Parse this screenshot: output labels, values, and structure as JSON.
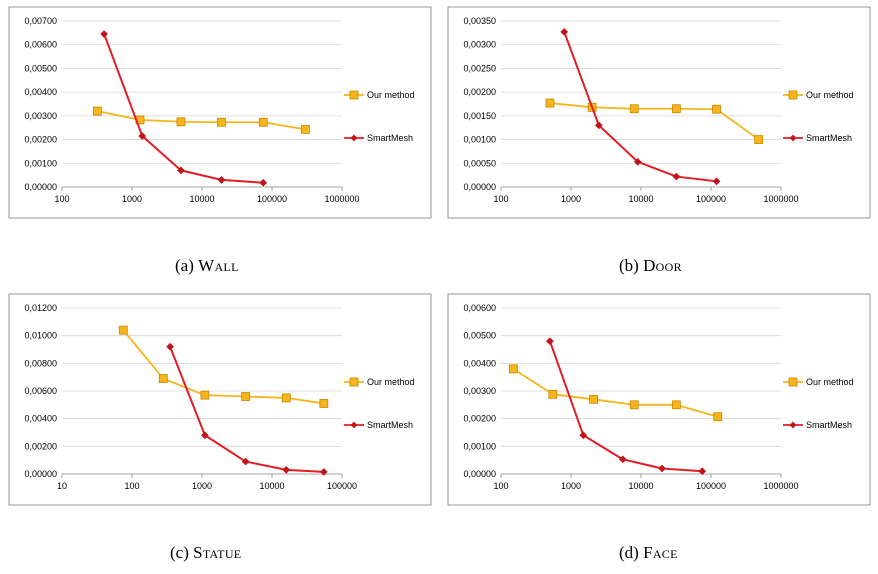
{
  "colors": {
    "our_method": "#f7b51d",
    "our_method_edge": "#c98700",
    "smartmesh": "#e21d24",
    "smartmesh_marker": "#c0141b",
    "frame": "#7f7f7f"
  },
  "chart_data": [
    {
      "id": "wall",
      "type": "line",
      "caption_prefix": "(a)",
      "caption_name": "Wall",
      "xscale": "log",
      "xlim": [
        100,
        1000000
      ],
      "ylim": [
        0,
        0.007
      ],
      "xticks": [
        100,
        1000,
        10000,
        100000,
        1000000
      ],
      "xtick_labels": [
        "100",
        "1000",
        "10000",
        "100000",
        "1000000"
      ],
      "yticks": [
        0,
        0.001,
        0.002,
        0.003,
        0.004,
        0.005,
        0.006,
        0.007
      ],
      "ytick_labels": [
        "0,00000",
        "0,00100",
        "0,00200",
        "0,00300",
        "0,00400",
        "0,00500",
        "0,00600",
        "0,00700"
      ],
      "grid": true,
      "legend": "right",
      "series": [
        {
          "name": "Our method",
          "color": "#f7b51d",
          "marker": "square",
          "x": [
            320,
            1300,
            5000,
            19000,
            75000,
            300000
          ],
          "y": [
            0.0032,
            0.00283,
            0.00275,
            0.00273,
            0.00273,
            0.00243
          ]
        },
        {
          "name": "SmartMesh",
          "color": "#e21d24",
          "marker": "diamond",
          "x": [
            400,
            1400,
            5000,
            19000,
            75000
          ],
          "y": [
            0.00645,
            0.00215,
            0.0007,
            0.0003,
            0.00018
          ]
        }
      ]
    },
    {
      "id": "door",
      "type": "line",
      "caption_prefix": "(b)",
      "caption_name": "Door",
      "xscale": "log",
      "xlim": [
        100,
        1000000
      ],
      "ylim": [
        0,
        0.0035
      ],
      "xticks": [
        100,
        1000,
        10000,
        100000,
        1000000
      ],
      "xtick_labels": [
        "100",
        "1000",
        "10000",
        "100000",
        "1000000"
      ],
      "yticks": [
        0,
        0.0005,
        0.001,
        0.0015,
        0.002,
        0.0025,
        0.003,
        0.0035
      ],
      "ytick_labels": [
        "0,00000",
        "0,00050",
        "0,00100",
        "0,00150",
        "0,00200",
        "0,00250",
        "0,00300",
        "0,00350"
      ],
      "grid": true,
      "legend": "right",
      "series": [
        {
          "name": "Our method",
          "color": "#f7b51d",
          "marker": "square",
          "x": [
            500,
            2000,
            8000,
            32000,
            120000,
            480000
          ],
          "y": [
            0.00177,
            0.00168,
            0.00165,
            0.00165,
            0.00164,
            0.001
          ]
        },
        {
          "name": "SmartMesh",
          "color": "#e21d24",
          "marker": "diamond",
          "x": [
            800,
            2500,
            9000,
            32000,
            120000
          ],
          "y": [
            0.00327,
            0.0013,
            0.00053,
            0.00022,
            0.00012
          ]
        }
      ]
    },
    {
      "id": "statue",
      "type": "line",
      "caption_prefix": "(c)",
      "caption_name": "Statue",
      "xscale": "log",
      "xlim": [
        10,
        100000
      ],
      "ylim": [
        0,
        0.012
      ],
      "xticks": [
        10,
        100,
        1000,
        10000,
        100000
      ],
      "xtick_labels": [
        "10",
        "100",
        "1000",
        "10000",
        "100000"
      ],
      "yticks": [
        0,
        0.002,
        0.004,
        0.006,
        0.008,
        0.01,
        0.012
      ],
      "ytick_labels": [
        "0,00000",
        "0,00200",
        "0,00400",
        "0,00600",
        "0,00800",
        "0,01000",
        "0,01200"
      ],
      "grid": true,
      "legend": "right",
      "series": [
        {
          "name": "Our method",
          "color": "#f7b51d",
          "marker": "square",
          "x": [
            75,
            280,
            1100,
            4200,
            16000,
            55000
          ],
          "y": [
            0.0104,
            0.0069,
            0.0057,
            0.0056,
            0.0055,
            0.0051
          ]
        },
        {
          "name": "SmartMesh",
          "color": "#e21d24",
          "marker": "diamond",
          "x": [
            350,
            1100,
            4200,
            16000,
            55000
          ],
          "y": [
            0.0092,
            0.0028,
            0.0009,
            0.0003,
            0.00015
          ]
        }
      ]
    },
    {
      "id": "face",
      "type": "line",
      "caption_prefix": "(d)",
      "caption_name": "Face",
      "xscale": "log",
      "xlim": [
        100,
        1000000
      ],
      "ylim": [
        0,
        0.006
      ],
      "xticks": [
        100,
        1000,
        10000,
        100000,
        1000000
      ],
      "xtick_labels": [
        "100",
        "1000",
        "10000",
        "100000",
        "1000000"
      ],
      "yticks": [
        0,
        0.001,
        0.002,
        0.003,
        0.004,
        0.005,
        0.006
      ],
      "ytick_labels": [
        "0,00000",
        "0,00100",
        "0,00200",
        "0,00300",
        "0,00400",
        "0,00500",
        "0,00600"
      ],
      "grid": true,
      "legend": "right",
      "series": [
        {
          "name": "Our method",
          "color": "#f7b51d",
          "marker": "square",
          "x": [
            150,
            550,
            2100,
            8000,
            32000,
            125000
          ],
          "y": [
            0.0038,
            0.00288,
            0.0027,
            0.0025,
            0.0025,
            0.00207
          ]
        },
        {
          "name": "SmartMesh",
          "color": "#e21d24",
          "marker": "diamond",
          "x": [
            500,
            1500,
            5500,
            20000,
            75000
          ],
          "y": [
            0.0048,
            0.0014,
            0.00053,
            0.0002,
            0.0001
          ]
        }
      ]
    }
  ]
}
